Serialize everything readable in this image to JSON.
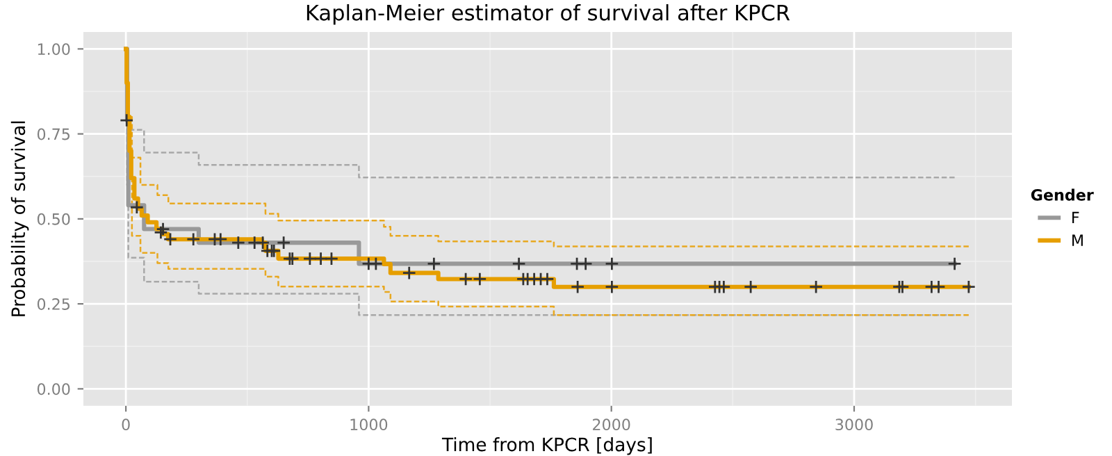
{
  "chart_data": {
    "type": "step",
    "title": "Kaplan-Meier estimator of survival after KPCR",
    "xlabel": "Time from KPCR [days]",
    "ylabel": "Probability of survival",
    "legend_title": "Gender",
    "xlim": [
      -175,
      3650
    ],
    "ylim": [
      -0.05,
      1.05
    ],
    "xticks": [
      0,
      1000,
      2000,
      3000
    ],
    "yticks": [
      {
        "value": 0,
        "label": "0.00"
      },
      {
        "value": 0.25,
        "label": "0.25"
      },
      {
        "value": 0.5,
        "label": "0.50"
      },
      {
        "value": 0.75,
        "label": "0.75"
      },
      {
        "value": 1,
        "label": "1.00"
      }
    ],
    "grid": true,
    "legend": "right",
    "series": [
      {
        "line_style": "dashed",
        "color": "#a8a8a8",
        "x": [
          0,
          10,
          75,
          300,
          960,
          3414
        ],
        "values": [
          1.0,
          0.762,
          0.695,
          0.659,
          0.622,
          0.622
        ]
      },
      {
        "line_style": "dashed",
        "color": "#a8a8a8",
        "x": [
          0,
          5,
          10,
          75,
          300,
          960,
          3414
        ],
        "values": [
          1.0,
          0.6,
          0.386,
          0.315,
          0.28,
          0.217,
          0.217
        ]
      },
      {
        "line_style": "dashed",
        "color": "#e8a820",
        "x": [
          0,
          10,
          25,
          60,
          130,
          175,
          575,
          628,
          1063,
          1090,
          1287,
          1763,
          3472
        ],
        "values": [
          1.0,
          0.8,
          0.68,
          0.6,
          0.57,
          0.545,
          0.515,
          0.495,
          0.477,
          0.45,
          0.434,
          0.419,
          0.419
        ]
      },
      {
        "line_style": "dashed",
        "color": "#e8a820",
        "x": [
          0,
          10,
          25,
          60,
          130,
          175,
          575,
          628,
          1063,
          1090,
          1287,
          1763,
          3472
        ],
        "values": [
          1.0,
          0.7,
          0.45,
          0.4,
          0.37,
          0.353,
          0.33,
          0.301,
          0.285,
          0.257,
          0.242,
          0.217,
          0.217
        ]
      },
      {
        "line_style": "solid",
        "name": "F",
        "color": "#999999",
        "x": [
          0,
          5,
          10,
          75,
          300,
          960,
          3414
        ],
        "values": [
          1.0,
          0.79,
          0.54,
          0.47,
          0.43,
          0.368,
          0.368
        ]
      },
      {
        "line_style": "solid",
        "name": "M",
        "color": "#e69f00",
        "x": [
          0,
          3,
          8,
          15,
          22,
          35,
          50,
          65,
          90,
          126,
          150,
          174,
          560,
          575,
          628,
          1063,
          1090,
          1287,
          1763,
          3472
        ],
        "values": [
          1.0,
          0.9,
          0.8,
          0.7,
          0.62,
          0.56,
          0.53,
          0.51,
          0.49,
          0.47,
          0.455,
          0.44,
          0.43,
          0.406,
          0.383,
          0.367,
          0.341,
          0.323,
          0.3,
          0.3
        ]
      },
      {
        "type": "scatter",
        "marker": "cross",
        "color": "#333333",
        "x": [
          3,
          153,
          463,
          530,
          564,
          650,
          1000,
          1030,
          1269,
          1619,
          1858,
          1894,
          2002,
          3414
        ],
        "values": [
          0.79,
          0.47,
          0.43,
          0.43,
          0.43,
          0.43,
          0.368,
          0.368,
          0.368,
          0.368,
          0.368,
          0.368,
          0.368,
          0.368
        ]
      },
      {
        "type": "scatter",
        "marker": "cross",
        "color": "#333333",
        "x": [
          45,
          144,
          183,
          278,
          366,
          390,
          583,
          601,
          610,
          675,
          686,
          758,
          803,
          847,
          1167,
          1400,
          1458,
          1637,
          1655,
          1682,
          1709,
          1736,
          1861,
          2002,
          2427,
          2445,
          2463,
          2574,
          2843,
          3186,
          3199,
          3319,
          3348,
          3472
        ],
        "values": [
          0.534,
          0.46,
          0.44,
          0.44,
          0.44,
          0.44,
          0.406,
          0.406,
          0.406,
          0.383,
          0.383,
          0.383,
          0.383,
          0.383,
          0.341,
          0.323,
          0.323,
          0.323,
          0.323,
          0.323,
          0.323,
          0.323,
          0.3,
          0.3,
          0.3,
          0.3,
          0.3,
          0.3,
          0.3,
          0.3,
          0.3,
          0.3,
          0.3,
          0.3
        ]
      }
    ]
  }
}
